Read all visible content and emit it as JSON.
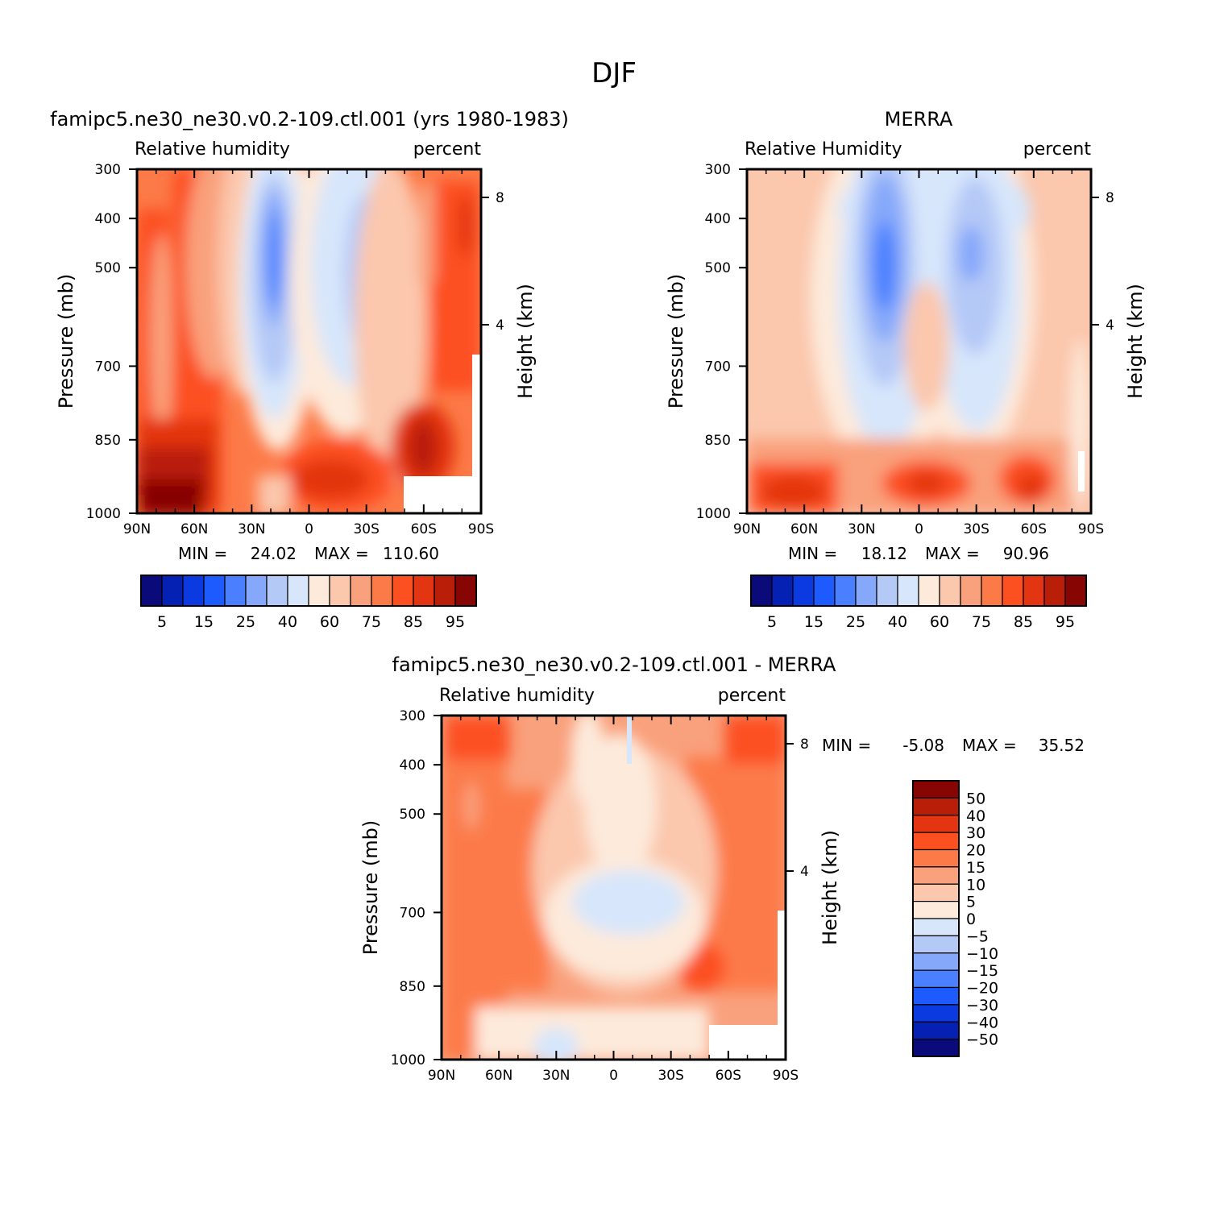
{
  "figure": {
    "title": "DJF"
  },
  "colors": {
    "rh_scale": [
      "#0b0a7a",
      "#0521b4",
      "#0a3ae0",
      "#1e5bff",
      "#4a80ff",
      "#86a8fa",
      "#b5c9f7",
      "#d7e6fb",
      "#fdeadb",
      "#fbc7ad",
      "#f9a07c",
      "#fc7a48",
      "#fc5021",
      "#e33511",
      "#b91e09",
      "#870603"
    ],
    "diff_scale": [
      "#0b0a7a",
      "#0521b4",
      "#0a3ae0",
      "#1e5bff",
      "#4a80ff",
      "#86a8fa",
      "#b5c9f7",
      "#d7e6fb",
      "#fdeadb",
      "#fbc7ad",
      "#f9a07c",
      "#fc7a48",
      "#fc5021",
      "#e33511",
      "#b91e09",
      "#870603"
    ]
  },
  "chart_data": [
    {
      "type": "heatmap",
      "name": "model",
      "title": "famipc5.ne30_ne30.v0.2-109.ctl.001 (yrs 1980-1983)",
      "left_label": "Relative humidity",
      "right_label": "percent",
      "ylabel": "Pressure (mb)",
      "ylabel_right": "Height (km)",
      "x_ticks": [
        "90N",
        "60N",
        "30N",
        "0",
        "30S",
        "60S",
        "90S"
      ],
      "y_ticks": [
        "300",
        "400",
        "500",
        "700",
        "850",
        "1000"
      ],
      "y_right_ticks": [
        "8",
        "4"
      ],
      "min_label": "MIN =",
      "min_value": "24.02",
      "max_label": "MAX =",
      "max_value": "110.60",
      "colorbar_labels": [
        "5",
        "15",
        "25",
        "40",
        "60",
        "75",
        "85",
        "95"
      ]
    },
    {
      "type": "heatmap",
      "name": "obs",
      "title": "MERRA",
      "left_label": "Relative Humidity",
      "right_label": "percent",
      "ylabel": "Pressure (mb)",
      "ylabel_right": "Height (km)",
      "x_ticks": [
        "90N",
        "60N",
        "30N",
        "0",
        "30S",
        "60S",
        "90S"
      ],
      "y_ticks": [
        "300",
        "400",
        "500",
        "700",
        "850",
        "1000"
      ],
      "y_right_ticks": [
        "8",
        "4"
      ],
      "min_label": "MIN =",
      "min_value": "18.12",
      "max_label": "MAX =",
      "max_value": "90.96",
      "colorbar_labels": [
        "5",
        "15",
        "25",
        "40",
        "60",
        "75",
        "85",
        "95"
      ]
    },
    {
      "type": "heatmap",
      "name": "diff",
      "title": "famipc5.ne30_ne30.v0.2-109.ctl.001 - MERRA",
      "left_label": "Relative humidity",
      "right_label": "percent",
      "ylabel": "Pressure (mb)",
      "ylabel_right": "Height (km)",
      "x_ticks": [
        "90N",
        "60N",
        "30N",
        "0",
        "30S",
        "60S",
        "90S"
      ],
      "y_ticks": [
        "300",
        "400",
        "500",
        "700",
        "850",
        "1000"
      ],
      "y_right_ticks": [
        "8",
        "4"
      ],
      "min_label": "MIN =",
      "min_value": "-5.08",
      "max_label": "MAX =",
      "max_value": "35.52",
      "colorbar_labels": [
        "50",
        "40",
        "30",
        "20",
        "15",
        "10",
        "5",
        "0",
        "-5",
        "-10",
        "-15",
        "-20",
        "-30",
        "-40",
        "-50"
      ]
    }
  ]
}
